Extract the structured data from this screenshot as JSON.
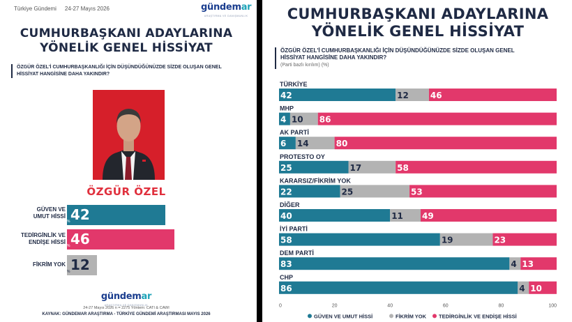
{
  "left": {
    "header": {
      "brand": "Türkiye Gündemi",
      "date": "24-27 Mayıs 2026"
    },
    "logo": {
      "text_main": "gündem",
      "text_accent": "ar",
      "tagline": "ARAŞTIRMA VE DANIŞMANLIK"
    },
    "title_line1": "CUMHURBAŞKANI ADAYLARINA",
    "title_line2": "YÖNELİK GENEL HİSSİYAT",
    "question": "ÖZGÜR ÖZEL'İ CUMHURBAŞKANLIĞI İÇİN DÜŞÜNDÜĞÜNÜZDE SİZDE OLUŞAN GENEL HİSSİYAT HANGİSİNE DAHA YAKINDIR?",
    "candidate": "ÖZGÜR ÖZEL",
    "kpis": [
      {
        "label_line1": "GÜVEN VE",
        "label_line2": "UMUT HİSSİ",
        "value": 42,
        "color": "#1f7a94"
      },
      {
        "label_line1": "TEDİRGİNLİK VE",
        "label_line2": "ENDİŞE HİSSİ",
        "value": 46,
        "color": "#e2386b"
      },
      {
        "label_line1": "FİKRİM YOK",
        "label_line2": "",
        "value": 12,
        "color": "#b3b3b3"
      }
    ],
    "footer": {
      "meta": "24-27 Mayıs 2026  n = 2275  Yöntem: CATI & CAWI",
      "source": "KAYNAK: GÜNDEMAR ARAŞTIRMA - TÜRKİYE GÜNDEMİ ARAŞTIRMASI MAYIS 2026"
    }
  },
  "right": {
    "title_line1": "CUMHURBAŞKANI ADAYLARINA",
    "title_line2": "YÖNELİK GENEL HİSSİYAT",
    "question_line1": "ÖZGÜR ÖZEL'İ CUMHURBAŞKANLIĞI İÇİN DÜŞÜNDÜĞÜNÜZDE SİZDE OLUŞAN GENEL",
    "question_line2": "HİSSİYAT HANGİSİNE DAHA YAKINDIR?",
    "note": "(Parti bazlı kırılım) (%)"
  },
  "chart_data": {
    "type": "bar",
    "stacked": true,
    "orientation": "horizontal",
    "categories": [
      "TÜRKİYE",
      "MHP",
      "AK PARTİ",
      "PROTESTO OY",
      "KARARSIZ/FİKRİM YOK",
      "DİĞER",
      "İYİ PARTİ",
      "DEM PARTİ",
      "CHP"
    ],
    "series": [
      {
        "name": "GÜVEN VE UMUT HİSSİ",
        "color": "#1f7a94",
        "values": [
          42,
          4,
          6,
          25,
          22,
          40,
          58,
          83,
          86
        ]
      },
      {
        "name": "FİKRİM YOK",
        "color": "#b3b3b3",
        "values": [
          12,
          10,
          14,
          17,
          25,
          11,
          19,
          4,
          4
        ]
      },
      {
        "name": "TEDİRGİNLİK VE ENDİŞE HİSSİ",
        "color": "#e2386b",
        "values": [
          46,
          86,
          80,
          58,
          53,
          49,
          23,
          13,
          10
        ]
      }
    ],
    "xlim": [
      0,
      100
    ],
    "xticks": [
      0,
      20,
      40,
      60,
      80,
      100
    ],
    "legend_position": "bottom",
    "grid": false
  }
}
